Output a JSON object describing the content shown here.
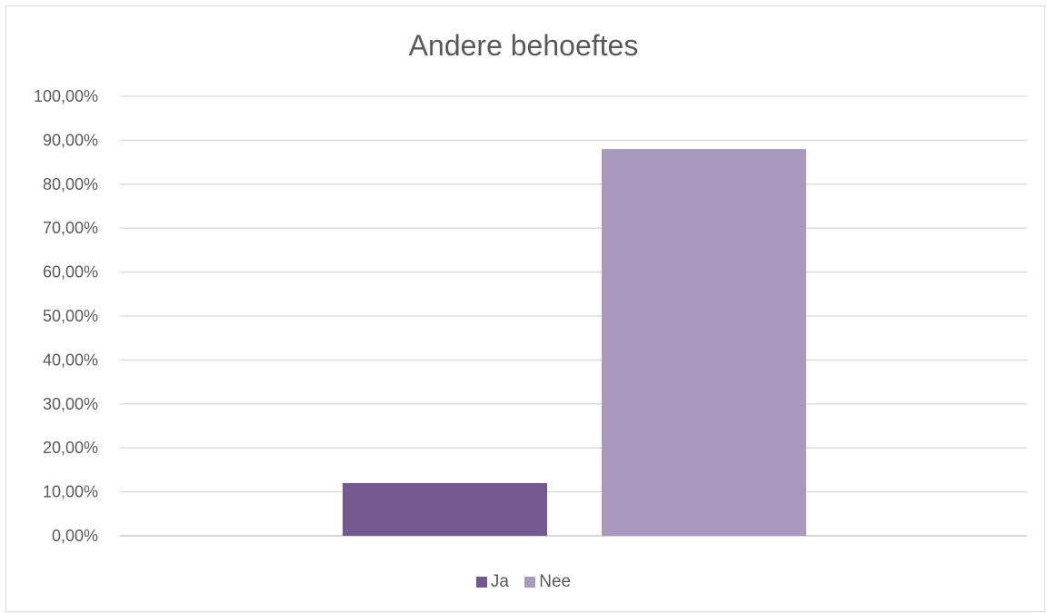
{
  "chart_data": {
    "type": "bar",
    "title": "Andere behoeftes",
    "xlabel": "",
    "ylabel": "",
    "ylim": [
      0,
      1
    ],
    "y_ticks": [
      "0,00%",
      "10,00%",
      "20,00%",
      "30,00%",
      "40,00%",
      "50,00%",
      "60,00%",
      "70,00%",
      "80,00%",
      "90,00%",
      "100,00%"
    ],
    "grid": true,
    "legend_position": "bottom",
    "series": [
      {
        "name": "Ja",
        "value": 0.12,
        "color": "#725990"
      },
      {
        "name": "Nee",
        "value": 0.88,
        "color": "#a99abd"
      }
    ]
  }
}
